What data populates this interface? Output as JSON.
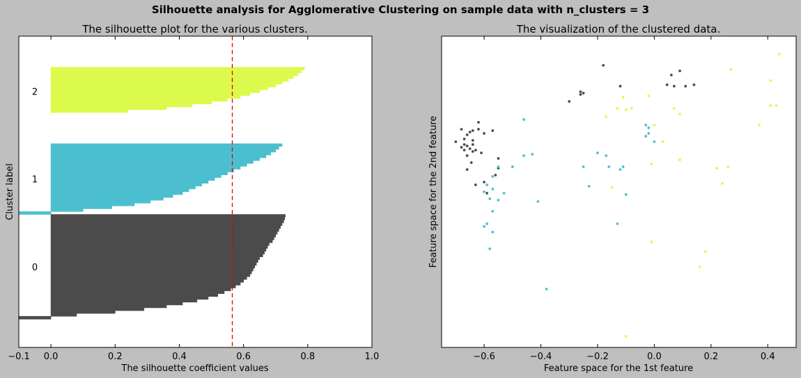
{
  "suptitle": "Silhouette analysis for Agglomerative Clustering on sample data with n_clusters = 3",
  "chart_data": [
    {
      "type": "area",
      "title": "The silhouette plot for the various clusters.",
      "xlabel": "The silhouette coefficient values",
      "ylabel": "Cluster label",
      "xlim": [
        -0.1,
        1.0
      ],
      "ylim": [
        0,
        110
      ],
      "xticks": [
        "−0.1",
        "0.0",
        "0.2",
        "0.4",
        "0.6",
        "0.8",
        "1.0"
      ],
      "grid": false,
      "mean_silhouette": 0.565,
      "clusters": [
        {
          "label": "0",
          "color": "#4b4b4b",
          "y_start": 10,
          "y_end": 47,
          "values": [
            -0.1,
            0.08,
            0.2,
            0.29,
            0.36,
            0.41,
            0.455,
            0.49,
            0.52,
            0.54,
            0.56,
            0.575,
            0.59,
            0.6,
            0.61,
            0.62,
            0.625,
            0.63,
            0.635,
            0.64,
            0.645,
            0.65,
            0.66,
            0.665,
            0.67,
            0.675,
            0.68,
            0.69,
            0.695,
            0.7,
            0.705,
            0.71,
            0.715,
            0.72,
            0.725,
            0.728,
            0.73
          ]
        },
        {
          "label": "1",
          "color": "#4bbfcf",
          "y_start": 47,
          "y_end": 72,
          "values": [
            -0.1,
            0.1,
            0.19,
            0.26,
            0.31,
            0.35,
            0.38,
            0.41,
            0.43,
            0.45,
            0.47,
            0.49,
            0.51,
            0.53,
            0.55,
            0.57,
            0.59,
            0.61,
            0.63,
            0.65,
            0.67,
            0.685,
            0.7,
            0.71,
            0.72
          ]
        },
        {
          "label": "2",
          "color": "#dcfa4b",
          "y_start": 82,
          "y_end": 99,
          "values": [
            0.0,
            0.24,
            0.36,
            0.44,
            0.5,
            0.55,
            0.59,
            0.62,
            0.65,
            0.675,
            0.7,
            0.72,
            0.74,
            0.755,
            0.77,
            0.78,
            0.79
          ]
        }
      ]
    },
    {
      "type": "scatter",
      "title": "The visualization of the clustered data.",
      "xlabel": "Feature space for the 1st feature",
      "ylabel": "Feature space for the 2nd feature",
      "xlim": [
        -0.75,
        0.5
      ],
      "ylim": [
        -0.52,
        0.6
      ],
      "xticks": [
        "−0.6",
        "−0.4",
        "−0.2",
        "0.0",
        "0.2",
        "0.4"
      ],
      "grid": false,
      "colors": {
        "0": "#4b4b4b",
        "1": "#4bbfcf",
        "2": "#dcfa4b"
      },
      "series": [
        {
          "cluster": "0",
          "points": [
            [
              -0.68,
              0.265
            ],
            [
              -0.67,
              0.23
            ],
            [
              -0.66,
              0.245
            ],
            [
              -0.65,
              0.255
            ],
            [
              -0.64,
              0.26
            ],
            [
              -0.62,
              0.29
            ],
            [
              -0.67,
              0.21
            ],
            [
              -0.66,
              0.205
            ],
            [
              -0.65,
              0.195
            ],
            [
              -0.64,
              0.21
            ],
            [
              -0.64,
              0.225
            ],
            [
              -0.64,
              0.185
            ],
            [
              -0.67,
              0.19
            ],
            [
              -0.7,
              0.22
            ],
            [
              -0.68,
              0.2
            ],
            [
              -0.66,
              0.17
            ],
            [
              -0.62,
              0.265
            ],
            [
              -0.6,
              0.25
            ],
            [
              -0.57,
              0.26
            ],
            [
              -0.61,
              0.18
            ],
            [
              -0.645,
              0.145
            ],
            [
              -0.63,
              0.19
            ],
            [
              -0.55,
              0.16
            ],
            [
              -0.66,
              0.12
            ],
            [
              -0.56,
              0.1
            ],
            [
              -0.55,
              0.125
            ],
            [
              -0.59,
              0.035
            ],
            [
              -0.6,
              0.075
            ],
            [
              -0.63,
              0.065
            ],
            [
              -0.18,
              0.495
            ],
            [
              -0.25,
              0.395
            ],
            [
              -0.26,
              0.39
            ],
            [
              -0.26,
              0.4
            ],
            [
              -0.3,
              0.365
            ],
            [
              -0.12,
              0.42
            ],
            [
              0.045,
              0.425
            ],
            [
              0.06,
              0.46
            ],
            [
              0.07,
              0.42
            ],
            [
              0.09,
              0.475
            ],
            [
              0.11,
              0.42
            ],
            [
              0.14,
              0.425
            ]
          ]
        },
        {
          "cluster": "1",
          "points": [
            [
              -0.46,
              0.3
            ],
            [
              -0.57,
              0.095
            ],
            [
              -0.55,
              0.13
            ],
            [
              -0.5,
              0.13
            ],
            [
              -0.6,
              0.04
            ],
            [
              -0.58,
              0.015
            ],
            [
              -0.59,
              0.065
            ],
            [
              -0.57,
              0.05
            ],
            [
              -0.55,
              0.01
            ],
            [
              -0.53,
              0.035
            ],
            [
              -0.57,
              -0.03
            ],
            [
              -0.59,
              -0.075
            ],
            [
              -0.6,
              -0.085
            ],
            [
              -0.57,
              -0.105
            ],
            [
              -0.58,
              -0.165
            ],
            [
              -0.38,
              -0.31
            ],
            [
              -0.41,
              0.005
            ],
            [
              -0.43,
              0.175
            ],
            [
              -0.46,
              0.17
            ],
            [
              -0.2,
              0.18
            ],
            [
              -0.17,
              0.17
            ],
            [
              -0.16,
              0.13
            ],
            [
              -0.12,
              0.12
            ],
            [
              -0.11,
              0.13
            ],
            [
              -0.25,
              0.13
            ],
            [
              -0.23,
              0.06
            ],
            [
              -0.1,
              0.03
            ],
            [
              -0.13,
              -0.075
            ],
            [
              -0.03,
              0.24
            ],
            [
              -0.02,
              0.25
            ],
            [
              -0.03,
              0.28
            ],
            [
              -0.02,
              0.27
            ],
            [
              0.0,
              0.22
            ]
          ]
        },
        {
          "cluster": "2",
          "points": [
            [
              -0.11,
              0.38
            ],
            [
              -0.02,
              0.385
            ],
            [
              -0.1,
              0.335
            ],
            [
              -0.08,
              0.34
            ],
            [
              -0.17,
              0.31
            ],
            [
              -0.13,
              0.34
            ],
            [
              0.07,
              0.34
            ],
            [
              0.09,
              0.32
            ],
            [
              0.0,
              0.28
            ],
            [
              0.03,
              0.22
            ],
            [
              -0.01,
              0.14
            ],
            [
              0.09,
              0.155
            ],
            [
              -0.15,
              0.055
            ],
            [
              0.22,
              0.125
            ],
            [
              0.26,
              0.13
            ],
            [
              0.24,
              0.07
            ],
            [
              0.27,
              0.48
            ],
            [
              0.37,
              0.28
            ],
            [
              0.41,
              0.44
            ],
            [
              0.41,
              0.35
            ],
            [
              0.43,
              0.35
            ],
            [
              0.44,
              0.535
            ],
            [
              -0.01,
              -0.14
            ],
            [
              0.18,
              -0.175
            ],
            [
              0.16,
              -0.23
            ],
            [
              -0.1,
              -0.48
            ]
          ]
        }
      ]
    }
  ]
}
